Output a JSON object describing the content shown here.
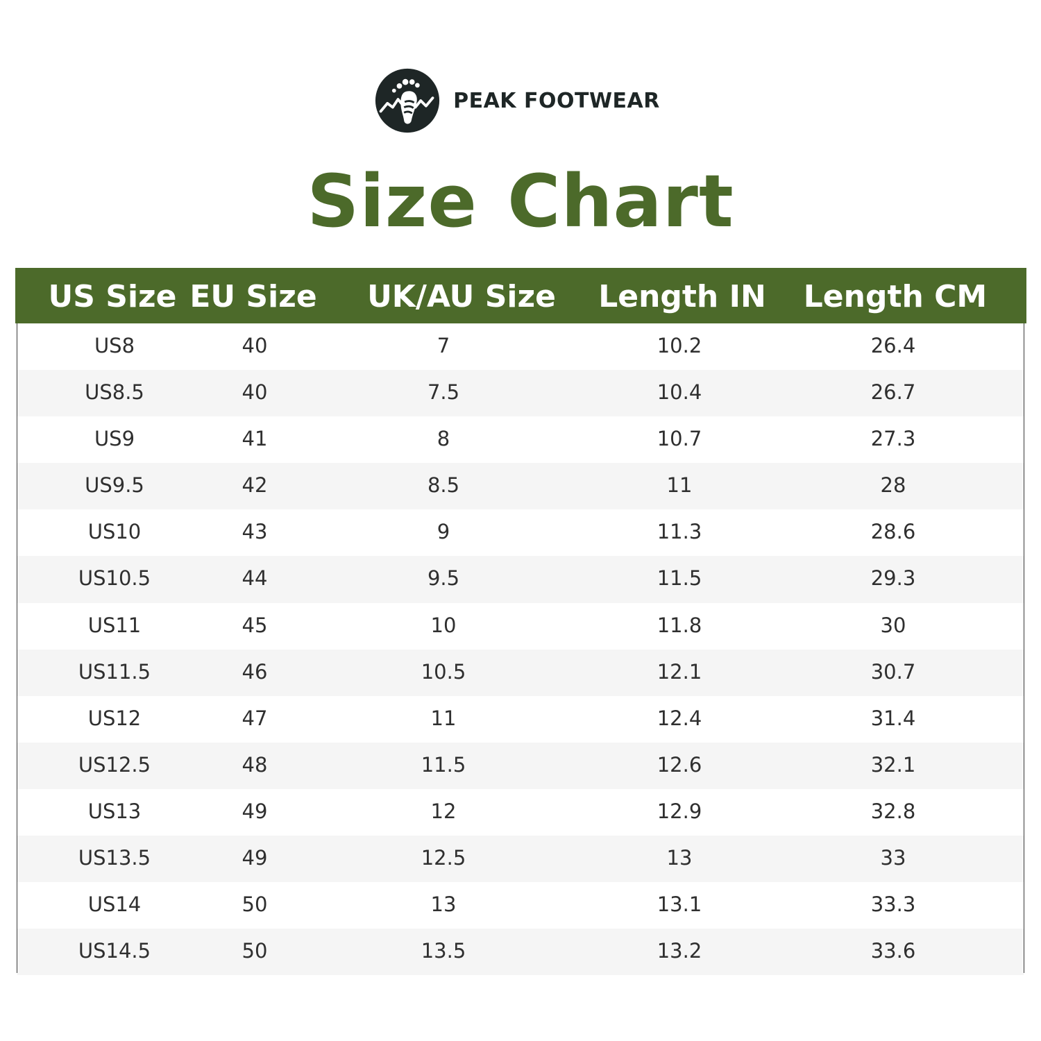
{
  "brand": {
    "name": "PEAK FOOTWEAR",
    "logo_icon": "footprint-mountain-icon",
    "logo_color": "#1e2626"
  },
  "title": "Size Chart",
  "colors": {
    "accent": "#4c6a2a",
    "header_text": "#ffffff",
    "row_alt": "#f5f5f5"
  },
  "table": {
    "headers": [
      "US Size",
      "EU Size",
      "UK/AU Size",
      "Length IN",
      "Length CM"
    ],
    "rows": [
      [
        "US8",
        "40",
        "7",
        "10.2",
        "26.4"
      ],
      [
        "US8.5",
        "40",
        "7.5",
        "10.4",
        "26.7"
      ],
      [
        "US9",
        "41",
        "8",
        "10.7",
        "27.3"
      ],
      [
        "US9.5",
        "42",
        "8.5",
        "11",
        "28"
      ],
      [
        "US10",
        "43",
        "9",
        "11.3",
        "28.6"
      ],
      [
        "US10.5",
        "44",
        "9.5",
        "11.5",
        "29.3"
      ],
      [
        "US11",
        "45",
        "10",
        "11.8",
        "30"
      ],
      [
        "US11.5",
        "46",
        "10.5",
        "12.1",
        "30.7"
      ],
      [
        "US12",
        "47",
        "11",
        "12.4",
        "31.4"
      ],
      [
        "US12.5",
        "48",
        "11.5",
        "12.6",
        "32.1"
      ],
      [
        "US13",
        "49",
        "12",
        "12.9",
        "32.8"
      ],
      [
        "US13.5",
        "49",
        "12.5",
        "13",
        "33"
      ],
      [
        "US14",
        "50",
        "13",
        "13.1",
        "33.3"
      ],
      [
        "US14.5",
        "50",
        "13.5",
        "13.2",
        "33.6"
      ]
    ]
  }
}
